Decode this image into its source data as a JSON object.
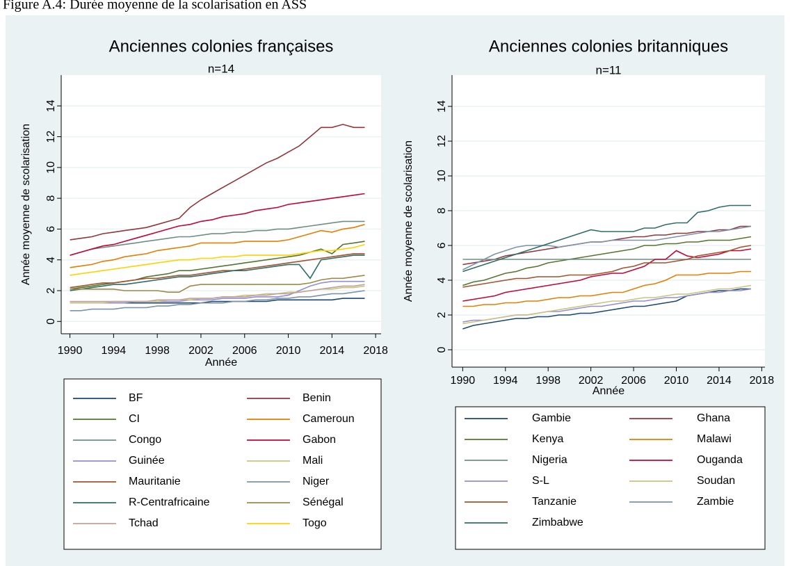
{
  "caption": "Figure A.4: Durée moyenne de la scolarisation en ASS",
  "chart_data": [
    {
      "type": "line",
      "title": "Anciennes colonies françaises",
      "subtitle": "n=14",
      "xlabel": "Année",
      "ylabel": "Année moyenne de scolarisation",
      "xlim": [
        1989.2,
        2018.5
      ],
      "ylim": [
        -0.8,
        16
      ],
      "xticks": [
        1990,
        1994,
        1998,
        2002,
        2006,
        2010,
        2014,
        2018
      ],
      "yticks": [
        0,
        2,
        4,
        6,
        8,
        10,
        12,
        14
      ],
      "grid": true,
      "x": [
        1990,
        1991,
        1992,
        1993,
        1994,
        1995,
        1996,
        1997,
        1998,
        1999,
        2000,
        2001,
        2002,
        2003,
        2004,
        2005,
        2006,
        2007,
        2008,
        2009,
        2010,
        2011,
        2012,
        2013,
        2014,
        2015,
        2016,
        2017
      ],
      "series": [
        {
          "name": "BF",
          "color": "#1a476f",
          "values": [
            1.2,
            1.2,
            1.2,
            1.2,
            1.2,
            1.2,
            1.2,
            1.2,
            1.2,
            1.2,
            1.2,
            1.2,
            1.2,
            1.3,
            1.3,
            1.3,
            1.3,
            1.3,
            1.3,
            1.4,
            1.4,
            1.4,
            1.4,
            1.4,
            1.4,
            1.5,
            1.5,
            1.5
          ]
        },
        {
          "name": "Benin",
          "color": "#90353b",
          "values": [
            5.3,
            5.4,
            5.5,
            5.7,
            5.8,
            5.9,
            6.0,
            6.1,
            6.3,
            6.5,
            6.7,
            7.4,
            7.9,
            8.3,
            8.7,
            9.1,
            9.5,
            9.9,
            10.3,
            10.6,
            11.0,
            11.4,
            12.0,
            12.6,
            12.6,
            12.8,
            12.6,
            12.6
          ]
        },
        {
          "name": "CI",
          "color": "#55752f",
          "values": [
            2.1,
            2.2,
            2.3,
            2.4,
            2.5,
            2.6,
            2.7,
            2.9,
            3.0,
            3.1,
            3.3,
            3.3,
            3.4,
            3.5,
            3.6,
            3.7,
            3.8,
            3.9,
            4.0,
            4.1,
            4.2,
            4.3,
            4.5,
            4.7,
            4.4,
            5.0,
            5.1,
            5.2
          ]
        },
        {
          "name": "Cameroun",
          "color": "#e37e00",
          "values": [
            3.5,
            3.6,
            3.7,
            3.9,
            4.0,
            4.2,
            4.3,
            4.4,
            4.6,
            4.7,
            4.8,
            4.9,
            5.1,
            5.1,
            5.1,
            5.1,
            5.2,
            5.2,
            5.2,
            5.2,
            5.3,
            5.5,
            5.7,
            5.9,
            5.8,
            6.0,
            6.1,
            6.3
          ]
        },
        {
          "name": "Congo",
          "color": "#6e8e84",
          "values": [
            4.3,
            4.5,
            4.7,
            4.8,
            4.9,
            5.0,
            5.1,
            5.2,
            5.3,
            5.4,
            5.5,
            5.5,
            5.6,
            5.7,
            5.7,
            5.8,
            5.8,
            5.9,
            5.9,
            6.0,
            6.0,
            6.1,
            6.2,
            6.3,
            6.4,
            6.5,
            6.5,
            6.5
          ]
        },
        {
          "name": "Gabon",
          "color": "#c10534",
          "values": [
            4.3,
            4.5,
            4.7,
            4.9,
            5.0,
            5.2,
            5.4,
            5.6,
            5.8,
            6.0,
            6.2,
            6.3,
            6.5,
            6.6,
            6.8,
            6.9,
            7.0,
            7.2,
            7.3,
            7.4,
            7.6,
            7.7,
            7.8,
            7.9,
            8.0,
            8.1,
            8.2,
            8.3
          ]
        },
        {
          "name": "Guinée",
          "color": "#938dd2",
          "values": [
            1.2,
            1.2,
            1.2,
            1.2,
            1.2,
            1.2,
            1.3,
            1.3,
            1.3,
            1.3,
            1.3,
            1.4,
            1.4,
            1.4,
            1.5,
            1.5,
            1.5,
            1.6,
            1.6,
            1.6,
            1.7,
            2.0,
            2.3,
            2.5,
            2.6,
            2.6,
            2.6,
            2.6
          ]
        },
        {
          "name": "Mali",
          "color": "#cac27e",
          "values": [
            1.2,
            1.2,
            1.2,
            1.2,
            1.3,
            1.3,
            1.3,
            1.3,
            1.3,
            1.4,
            1.4,
            1.4,
            1.5,
            1.5,
            1.6,
            1.6,
            1.7,
            1.7,
            1.8,
            1.8,
            1.9,
            1.9,
            2.0,
            2.1,
            2.1,
            2.2,
            2.2,
            2.3
          ]
        },
        {
          "name": "Mauritanie",
          "color": "#a0522d",
          "values": [
            2.2,
            2.3,
            2.4,
            2.5,
            2.5,
            2.6,
            2.7,
            2.8,
            2.8,
            2.9,
            3.0,
            3.0,
            3.1,
            3.2,
            3.3,
            3.3,
            3.4,
            3.5,
            3.6,
            3.7,
            3.8,
            3.9,
            4.0,
            4.1,
            4.2,
            4.3,
            4.4,
            4.4
          ]
        },
        {
          "name": "Niger",
          "color": "#7b92a8",
          "values": [
            0.7,
            0.7,
            0.8,
            0.8,
            0.8,
            0.9,
            0.9,
            0.9,
            1.0,
            1.0,
            1.1,
            1.1,
            1.2,
            1.2,
            1.2,
            1.3,
            1.3,
            1.4,
            1.4,
            1.5,
            1.5,
            1.6,
            1.6,
            1.7,
            1.8,
            1.8,
            1.9,
            2.0
          ]
        },
        {
          "name": "R-Centrafricaine",
          "color": "#2d6d66",
          "values": [
            2.0,
            2.1,
            2.2,
            2.3,
            2.4,
            2.4,
            2.5,
            2.6,
            2.7,
            2.8,
            2.9,
            2.9,
            3.0,
            3.1,
            3.2,
            3.3,
            3.3,
            3.4,
            3.5,
            3.6,
            3.7,
            3.7,
            2.8,
            4.0,
            4.1,
            4.2,
            4.3,
            4.3
          ]
        },
        {
          "name": "Sénégal",
          "color": "#9c8847",
          "values": [
            2.1,
            2.1,
            2.1,
            2.1,
            2.1,
            2.0,
            2.0,
            2.0,
            2.0,
            1.9,
            1.9,
            2.3,
            2.4,
            2.4,
            2.4,
            2.4,
            2.4,
            2.4,
            2.4,
            2.4,
            2.4,
            2.4,
            2.5,
            2.7,
            2.8,
            2.8,
            2.9,
            3.0
          ]
        },
        {
          "name": "Tchad",
          "color": "#bfa19c",
          "values": [
            1.3,
            1.3,
            1.3,
            1.3,
            1.3,
            1.3,
            1.3,
            1.3,
            1.4,
            1.4,
            1.4,
            1.5,
            1.5,
            1.5,
            1.6,
            1.6,
            1.6,
            1.7,
            1.7,
            1.8,
            1.8,
            1.9,
            2.0,
            2.1,
            2.2,
            2.3,
            2.3,
            2.4
          ]
        },
        {
          "name": "Togo",
          "color": "#ffd200",
          "values": [
            3.0,
            3.1,
            3.2,
            3.3,
            3.4,
            3.5,
            3.6,
            3.7,
            3.8,
            3.9,
            4.0,
            4.0,
            4.1,
            4.1,
            4.2,
            4.2,
            4.3,
            4.3,
            4.3,
            4.3,
            4.3,
            4.4,
            4.5,
            4.6,
            4.6,
            4.7,
            4.8,
            5.0
          ]
        }
      ]
    },
    {
      "type": "line",
      "title": "Anciennes colonies britanniques",
      "subtitle": "n=11",
      "xlabel": "Année",
      "ylabel": "Année moyenne de scolarisation",
      "xlim": [
        1989.0,
        2018.3
      ],
      "ylim": [
        -1.0,
        15.8
      ],
      "xticks": [
        1990,
        1994,
        1998,
        2002,
        2006,
        2010,
        2014,
        2018
      ],
      "yticks": [
        0,
        2,
        4,
        6,
        8,
        10,
        12,
        14
      ],
      "grid": true,
      "x": [
        1990,
        1991,
        1992,
        1993,
        1994,
        1995,
        1996,
        1997,
        1998,
        1999,
        2000,
        2001,
        2002,
        2003,
        2004,
        2005,
        2006,
        2007,
        2008,
        2009,
        2010,
        2011,
        2012,
        2013,
        2014,
        2015,
        2016,
        2017
      ],
      "series": [
        {
          "name": "Gambie",
          "color": "#1a476f",
          "values": [
            1.2,
            1.4,
            1.5,
            1.6,
            1.7,
            1.8,
            1.8,
            1.9,
            1.9,
            2.0,
            2.0,
            2.1,
            2.1,
            2.2,
            2.3,
            2.4,
            2.5,
            2.5,
            2.6,
            2.7,
            2.8,
            3.1,
            3.2,
            3.3,
            3.4,
            3.4,
            3.5,
            3.5
          ]
        },
        {
          "name": "Ghana",
          "color": "#90353b",
          "values": [
            4.9,
            5.0,
            5.1,
            5.2,
            5.4,
            5.5,
            5.6,
            5.7,
            5.8,
            5.9,
            6.0,
            6.1,
            6.2,
            6.2,
            6.3,
            6.4,
            6.5,
            6.5,
            6.6,
            6.6,
            6.7,
            6.7,
            6.8,
            6.8,
            6.9,
            6.9,
            7.1,
            7.1
          ]
        },
        {
          "name": "Kenya",
          "color": "#55752f",
          "values": [
            3.7,
            3.9,
            4.0,
            4.2,
            4.4,
            4.5,
            4.7,
            4.8,
            5.0,
            5.1,
            5.2,
            5.3,
            5.4,
            5.5,
            5.6,
            5.7,
            5.8,
            6.0,
            6.0,
            6.1,
            6.1,
            6.2,
            6.2,
            6.3,
            6.3,
            6.3,
            6.4,
            6.5
          ]
        },
        {
          "name": "Malawi",
          "color": "#e37e00",
          "values": [
            2.5,
            2.5,
            2.6,
            2.6,
            2.7,
            2.7,
            2.8,
            2.8,
            2.9,
            3.0,
            3.0,
            3.1,
            3.1,
            3.2,
            3.3,
            3.3,
            3.5,
            3.7,
            3.8,
            4.0,
            4.3,
            4.3,
            4.3,
            4.4,
            4.4,
            4.4,
            4.5,
            4.5
          ]
        },
        {
          "name": "Nigeria",
          "color": "#6e8e84",
          "values": [
            5.2,
            5.2,
            5.2,
            5.2,
            5.2,
            5.2,
            5.2,
            5.2,
            5.2,
            5.2,
            5.2,
            5.2,
            5.2,
            5.2,
            5.2,
            5.2,
            5.2,
            5.2,
            5.2,
            5.2,
            5.2,
            5.2,
            5.2,
            5.2,
            5.2,
            5.2,
            5.2,
            5.2
          ]
        },
        {
          "name": "Ouganda",
          "color": "#c10534",
          "values": [
            2.8,
            2.9,
            3.0,
            3.1,
            3.3,
            3.4,
            3.5,
            3.6,
            3.7,
            3.8,
            3.9,
            4.0,
            4.2,
            4.3,
            4.4,
            4.4,
            4.6,
            4.8,
            5.2,
            5.2,
            5.7,
            5.4,
            5.3,
            5.4,
            5.5,
            5.7,
            5.7,
            5.8
          ]
        },
        {
          "name": "S-L",
          "color": "#938dd2",
          "values": [
            1.6,
            1.7,
            1.7,
            1.8,
            1.9,
            2.0,
            2.0,
            2.1,
            2.2,
            2.2,
            2.3,
            2.4,
            2.5,
            2.5,
            2.6,
            2.7,
            2.8,
            2.8,
            2.9,
            3.0,
            3.0,
            3.1,
            3.2,
            3.3,
            3.3,
            3.4,
            3.4,
            3.5
          ]
        },
        {
          "name": "Soudan",
          "color": "#cac27e",
          "values": [
            1.5,
            1.6,
            1.7,
            1.8,
            1.9,
            2.0,
            2.0,
            2.1,
            2.2,
            2.3,
            2.4,
            2.5,
            2.6,
            2.7,
            2.8,
            2.8,
            2.9,
            3.0,
            3.0,
            3.1,
            3.2,
            3.2,
            3.3,
            3.4,
            3.5,
            3.5,
            3.6,
            3.7
          ]
        },
        {
          "name": "Tanzanie",
          "color": "#a0522d",
          "values": [
            3.6,
            3.7,
            3.8,
            3.9,
            4.0,
            4.1,
            4.1,
            4.2,
            4.2,
            4.2,
            4.3,
            4.3,
            4.3,
            4.4,
            4.5,
            4.7,
            4.8,
            5.0,
            5.0,
            5.0,
            5.1,
            5.2,
            5.4,
            5.5,
            5.6,
            5.7,
            5.9,
            6.0
          ]
        },
        {
          "name": "Zambie",
          "color": "#7b92a8",
          "values": [
            4.6,
            4.9,
            5.2,
            5.5,
            5.7,
            5.9,
            6.0,
            6.0,
            6.0,
            5.9,
            6.0,
            6.1,
            6.2,
            6.2,
            6.3,
            6.3,
            6.3,
            6.3,
            6.3,
            6.4,
            6.5,
            6.6,
            6.7,
            6.8,
            6.8,
            6.9,
            7.0,
            7.1
          ]
        },
        {
          "name": "Zimbabwe",
          "color": "#2d6d66",
          "values": [
            4.5,
            4.7,
            4.9,
            5.1,
            5.3,
            5.5,
            5.7,
            5.9,
            6.1,
            6.3,
            6.5,
            6.7,
            6.9,
            6.8,
            6.8,
            6.8,
            6.8,
            7.0,
            7.0,
            7.2,
            7.3,
            7.3,
            7.9,
            8.0,
            8.2,
            8.3,
            8.3,
            8.3
          ]
        }
      ]
    }
  ]
}
